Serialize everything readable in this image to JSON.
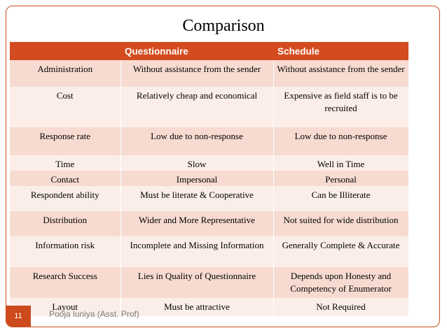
{
  "title": "Comparison",
  "table": {
    "headers": [
      "",
      "Questionnaire",
      "Schedule"
    ],
    "rows": [
      [
        "Administration",
        "Without assistance from the sender",
        "Without assistance from the sender"
      ],
      [
        "Cost",
        "Relatively cheap and economical",
        "Expensive as field staff is to be recruited"
      ],
      [
        "Response rate",
        "Low due to non-response",
        "Low due to non-response"
      ],
      [
        "Time",
        "Slow",
        "Well in Time"
      ],
      [
        "Contact",
        "Impersonal",
        "Personal"
      ],
      [
        "Respondent ability",
        "Must be literate & Cooperative",
        "Can be Illiterate"
      ],
      [
        "Distribution",
        "Wider and More Representative",
        "Not suited for wide distribution"
      ],
      [
        "Information risk",
        "Incomplete and Missing Information",
        "Generally Complete & Accurate"
      ],
      [
        "Research Success",
        "Lies in Quality of Questionnaire",
        "Depends upon Honesty and Competency of  Enumerator"
      ],
      [
        "Layout",
        "Must be attractive",
        "Not Required"
      ]
    ]
  },
  "footer": "Pooja luniya (Asst. Prof)",
  "page_number": "11",
  "colors": {
    "accent": "#d34b1f",
    "row_dark": "#f7dbd1",
    "row_light": "#fbeee9"
  }
}
